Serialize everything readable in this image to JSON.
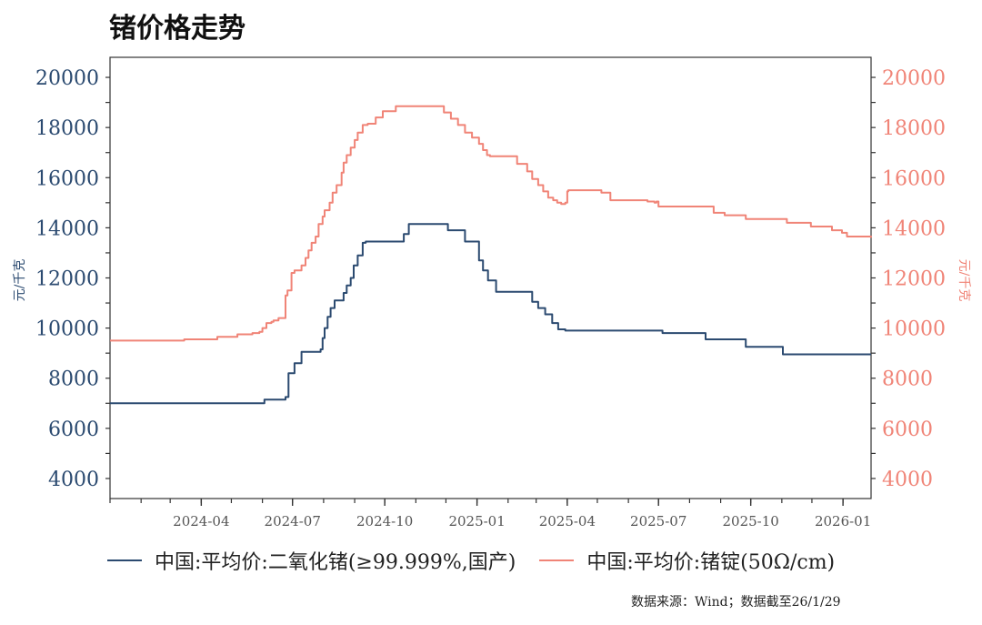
{
  "title": "锗价格走势",
  "source_note": "数据来源：Wind；数据截至26/1/29",
  "colors": {
    "left": "#2b4a70",
    "right": "#f08477"
  },
  "chart_data": {
    "type": "line",
    "title": "锗价格走势",
    "x_type": "date",
    "xlim": [
      "2024-01-01",
      "2026-01-29"
    ],
    "x_ticks": [
      "2024-04",
      "2024-07",
      "2024-10",
      "2025-01",
      "2025-04",
      "2025-07",
      "2025-10",
      "2026-01"
    ],
    "y_left": {
      "label": "元/千克",
      "ylim": [
        3200,
        20800
      ],
      "ticks": [
        4000,
        6000,
        8000,
        10000,
        12000,
        14000,
        16000,
        18000,
        20000
      ]
    },
    "y_right": {
      "label": "元/千克",
      "ylim": [
        3200,
        20800
      ],
      "ticks": [
        4000,
        6000,
        8000,
        10000,
        12000,
        14000,
        16000,
        18000,
        20000
      ]
    },
    "legend_position": "bottom",
    "series": [
      {
        "name": "中国:平均价:二氧化锗(≥99.999%,国产)",
        "axis": "left",
        "color": "#2b4a70",
        "x": [
          "2024-01-01",
          "2024-05-27",
          "2024-06-03",
          "2024-06-17",
          "2024-06-24",
          "2024-06-27",
          "2024-07-03",
          "2024-07-10",
          "2024-07-24",
          "2024-07-29",
          "2024-07-31",
          "2024-08-02",
          "2024-08-05",
          "2024-08-08",
          "2024-08-12",
          "2024-08-21",
          "2024-08-24",
          "2024-08-28",
          "2024-08-31",
          "2024-09-04",
          "2024-09-09",
          "2024-09-12",
          "2024-09-27",
          "2024-10-20",
          "2024-10-25",
          "2024-11-25",
          "2024-12-03",
          "2024-12-20",
          "2024-12-27",
          "2025-01-03",
          "2025-01-07",
          "2025-01-12",
          "2025-01-20",
          "2025-02-20",
          "2025-02-25",
          "2025-03-03",
          "2025-03-10",
          "2025-03-17",
          "2025-03-23",
          "2025-03-30",
          "2025-06-30",
          "2025-07-05",
          "2025-08-10",
          "2025-08-17",
          "2025-09-21",
          "2025-09-26",
          "2025-10-24",
          "2025-11-02",
          "2026-01-29"
        ],
        "y": [
          7000,
          7000,
          7150,
          7150,
          7250,
          8200,
          8600,
          9050,
          9050,
          9150,
          9600,
          10000,
          10450,
          10800,
          11100,
          11400,
          11700,
          12000,
          12500,
          12900,
          13400,
          13450,
          13450,
          13750,
          14150,
          14150,
          13900,
          13450,
          13450,
          12700,
          12300,
          11900,
          11450,
          11450,
          11050,
          10800,
          10550,
          10200,
          9950,
          9900,
          9900,
          9800,
          9800,
          9550,
          9550,
          9250,
          9250,
          8950,
          8950
        ]
      },
      {
        "name": "中国:平均价:锗锭(50Ω/cm)",
        "axis": "right",
        "color": "#f08477",
        "x": [
          "2024-01-01",
          "2024-03-01",
          "2024-03-15",
          "2024-04-10",
          "2024-04-17",
          "2024-05-07",
          "2024-05-22",
          "2024-05-29",
          "2024-06-01",
          "2024-06-05",
          "2024-06-10",
          "2024-06-12",
          "2024-06-17",
          "2024-06-24",
          "2024-06-26",
          "2024-06-30",
          "2024-07-03",
          "2024-07-10",
          "2024-07-14",
          "2024-07-17",
          "2024-07-20",
          "2024-07-24",
          "2024-07-27",
          "2024-07-31",
          "2024-08-02",
          "2024-08-07",
          "2024-08-10",
          "2024-08-14",
          "2024-08-19",
          "2024-08-21",
          "2024-08-24",
          "2024-08-28",
          "2024-09-01",
          "2024-09-04",
          "2024-09-09",
          "2024-09-14",
          "2024-09-22",
          "2024-09-29",
          "2024-10-12",
          "2024-11-22",
          "2024-11-29",
          "2024-12-06",
          "2024-12-13",
          "2024-12-20",
          "2024-12-27",
          "2025-01-03",
          "2025-01-07",
          "2025-01-11",
          "2025-01-14",
          "2025-01-22",
          "2025-02-10",
          "2025-02-20",
          "2025-02-25",
          "2025-03-03",
          "2025-03-08",
          "2025-03-13",
          "2025-03-18",
          "2025-03-22",
          "2025-03-26",
          "2025-03-30",
          "2025-04-01",
          "2025-04-02",
          "2025-05-05",
          "2025-05-14",
          "2025-06-20",
          "2025-06-27",
          "2025-06-29",
          "2025-07-01",
          "2025-08-20",
          "2025-08-25",
          "2025-09-05",
          "2025-09-08",
          "2025-09-26",
          "2025-11-01",
          "2025-11-06",
          "2025-11-30",
          "2025-12-10",
          "2025-12-21",
          "2025-12-31",
          "2026-01-05",
          "2026-01-29"
        ],
        "y": [
          9500,
          9500,
          9550,
          9550,
          9650,
          9750,
          9800,
          9850,
          10000,
          10200,
          10250,
          10300,
          10400,
          11300,
          11500,
          12200,
          12300,
          12500,
          12800,
          13100,
          13400,
          13650,
          14150,
          14450,
          14700,
          15000,
          15400,
          15700,
          16200,
          16600,
          16900,
          17200,
          17500,
          17800,
          18100,
          18150,
          18400,
          18650,
          18850,
          18850,
          18600,
          18350,
          18100,
          17800,
          17600,
          17350,
          17100,
          16900,
          16850,
          16850,
          16550,
          16250,
          15950,
          15700,
          15450,
          15200,
          15100,
          15000,
          14950,
          15000,
          15450,
          15500,
          15400,
          15100,
          15050,
          15000,
          15050,
          14850,
          14850,
          14600,
          14500,
          14500,
          14350,
          14350,
          14200,
          14050,
          14050,
          13900,
          13800,
          13650,
          13600
        ]
      }
    ]
  }
}
